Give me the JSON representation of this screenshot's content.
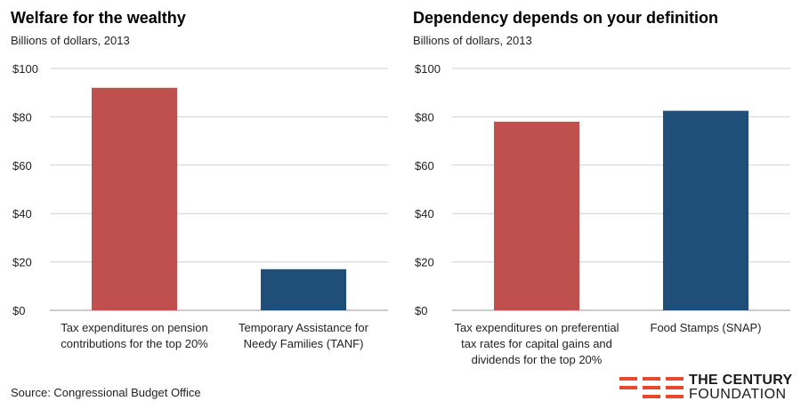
{
  "chart_data": [
    {
      "type": "bar",
      "title": "Welfare for the wealthy",
      "subtitle": "Billions of dollars, 2013",
      "categories": [
        [
          "Tax expenditures on pension",
          "contributions for the top 20%"
        ],
        [
          "Temporary Assistance for",
          "Needy Families (TANF)"
        ]
      ],
      "values": [
        92,
        17
      ],
      "colors": [
        "#c0504d",
        "#1f4e79"
      ],
      "ylim": [
        0,
        100
      ],
      "yticks": [
        "$0",
        "$20",
        "$40",
        "$60",
        "$80",
        "$100"
      ],
      "ytick_values": [
        0,
        20,
        40,
        60,
        80,
        100
      ],
      "grid": true,
      "xlabel": "",
      "ylabel": ""
    },
    {
      "type": "bar",
      "title": "Dependency depends on your definition",
      "subtitle": "Billions of dollars, 2013",
      "categories": [
        [
          "Tax expenditures on preferential",
          "tax rates for capital gains and",
          "dividends for the top 20%"
        ],
        [
          "Food Stamps (SNAP)"
        ]
      ],
      "values": [
        78,
        82.5
      ],
      "colors": [
        "#c0504d",
        "#1f4e79"
      ],
      "ylim": [
        0,
        100
      ],
      "yticks": [
        "$0",
        "$20",
        "$40",
        "$60",
        "$80",
        "$100"
      ],
      "ytick_values": [
        0,
        20,
        40,
        60,
        80,
        100
      ],
      "grid": true,
      "xlabel": "",
      "ylabel": ""
    }
  ],
  "footer": {
    "source": "Source: Congressional Budget Office"
  },
  "logo": {
    "line1": "THE CENTURY",
    "line2": "FOUNDATION",
    "color": "#e8482f"
  }
}
